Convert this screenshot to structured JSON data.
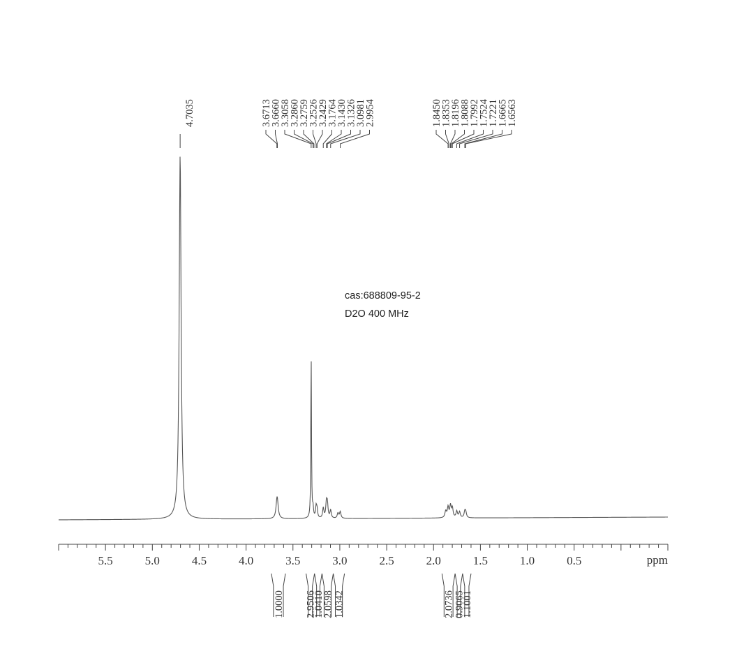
{
  "chart_data": {
    "type": "line",
    "xlabel": "ppm",
    "xlim": [
      6.0,
      -0.5
    ],
    "x_reversed": true,
    "x_ticks": [
      "5.5",
      "5.0",
      "4.5",
      "4.0",
      "3.5",
      "3.0",
      "2.5",
      "2.0",
      "1.5",
      "1.0",
      "0.5"
    ],
    "annotations": [
      "cas:688809-95-2",
      "D2O  400 MHz"
    ],
    "peak_groups": [
      {
        "labels": [
          "4.7035"
        ]
      },
      {
        "labels": [
          "3.6713",
          "3.6660",
          "3.3058",
          "3.2860",
          "3.2759",
          "3.2526",
          "3.2429",
          "3.1764",
          "3.1430",
          "3.1326",
          "3.0981",
          "2.9954"
        ]
      },
      {
        "labels": [
          "1.8450",
          "1.8353",
          "1.8196",
          "1.8088",
          "1.7992",
          "1.7524",
          "1.7221",
          "1.6665",
          "1.6563"
        ]
      }
    ],
    "peaks": [
      {
        "ppm": 4.7035,
        "height": 1.0,
        "width": 0.012
      },
      {
        "ppm": 3.6713,
        "height": 0.034,
        "width": 0.012
      },
      {
        "ppm": 3.666,
        "height": 0.03,
        "width": 0.012
      },
      {
        "ppm": 3.3058,
        "height": 0.46,
        "width": 0.004
      },
      {
        "ppm": 3.286,
        "height": 0.025,
        "width": 0.006
      },
      {
        "ppm": 3.2526,
        "height": 0.03,
        "width": 0.007
      },
      {
        "ppm": 3.2429,
        "height": 0.022,
        "width": 0.007
      },
      {
        "ppm": 3.1764,
        "height": 0.028,
        "width": 0.008
      },
      {
        "ppm": 3.143,
        "height": 0.04,
        "width": 0.008
      },
      {
        "ppm": 3.1326,
        "height": 0.036,
        "width": 0.008
      },
      {
        "ppm": 3.0981,
        "height": 0.022,
        "width": 0.008
      },
      {
        "ppm": 2.9954,
        "height": 0.018,
        "width": 0.009
      },
      {
        "ppm": 3.02,
        "height": 0.014,
        "width": 0.009
      },
      {
        "ppm": 1.845,
        "height": 0.028,
        "width": 0.009
      },
      {
        "ppm": 1.8196,
        "height": 0.032,
        "width": 0.009
      },
      {
        "ppm": 1.7992,
        "height": 0.026,
        "width": 0.009
      },
      {
        "ppm": 1.87,
        "height": 0.018,
        "width": 0.01
      },
      {
        "ppm": 1.7524,
        "height": 0.018,
        "width": 0.009
      },
      {
        "ppm": 1.7221,
        "height": 0.016,
        "width": 0.009
      },
      {
        "ppm": 1.6665,
        "height": 0.016,
        "width": 0.009
      },
      {
        "ppm": 1.6563,
        "height": 0.014,
        "width": 0.009
      }
    ],
    "integrals": [
      {
        "from": 3.73,
        "to": 3.58,
        "value": "1.0000"
      },
      {
        "from": 3.36,
        "to": 3.27,
        "value": "2.9506"
      },
      {
        "from": 3.27,
        "to": 3.19,
        "value": "1.0410"
      },
      {
        "from": 3.19,
        "to": 3.07,
        "value": "2.0598"
      },
      {
        "from": 3.07,
        "to": 2.95,
        "value": "1.0342"
      },
      {
        "from": 1.91,
        "to": 1.77,
        "value": "2.0736"
      },
      {
        "from": 1.77,
        "to": 1.69,
        "value": "0.9065"
      },
      {
        "from": 1.69,
        "to": 1.6,
        "value": "1.1001"
      }
    ]
  }
}
